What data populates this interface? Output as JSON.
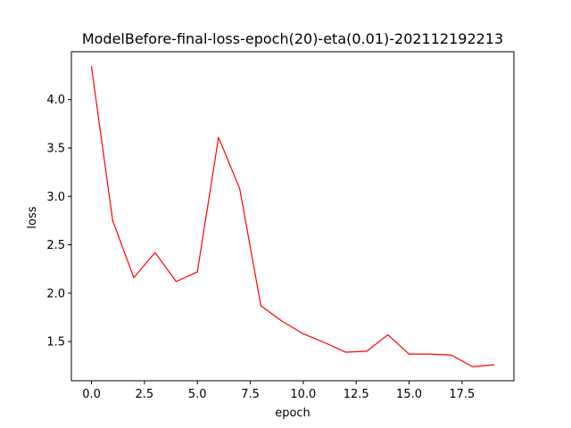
{
  "chart_data": {
    "type": "line",
    "title": "ModelBefore-final-loss-epoch(20)-eta(0.01)-202112192213",
    "xlabel": "epoch",
    "ylabel": "loss",
    "xlim": [
      -0.95,
      19.95
    ],
    "ylim": [
      1.095,
      4.495
    ],
    "x_ticks": [
      0,
      2.5,
      5,
      7.5,
      10,
      12.5,
      15,
      17.5
    ],
    "x_tick_labels": [
      "0.0",
      "2.5",
      "5.0",
      "7.5",
      "10.0",
      "12.5",
      "15.0",
      "17.5"
    ],
    "y_ticks": [
      1.5,
      2.0,
      2.5,
      3.0,
      3.5,
      4.0
    ],
    "y_tick_labels": [
      "1.5",
      "2.0",
      "2.5",
      "3.0",
      "3.5",
      "4.0"
    ],
    "grid": false,
    "legend": "none",
    "series": [
      {
        "color": "#ff0000",
        "x": [
          0,
          1,
          2,
          3,
          4,
          5,
          6,
          7,
          8,
          9,
          10,
          11,
          12,
          13,
          14,
          15,
          16,
          17,
          18,
          19
        ],
        "y": [
          4.34,
          2.75,
          2.16,
          2.42,
          2.12,
          2.22,
          3.61,
          3.08,
          1.87,
          1.71,
          1.58,
          1.49,
          1.39,
          1.4,
          1.57,
          1.37,
          1.37,
          1.36,
          1.24,
          1.26
        ]
      }
    ]
  }
}
